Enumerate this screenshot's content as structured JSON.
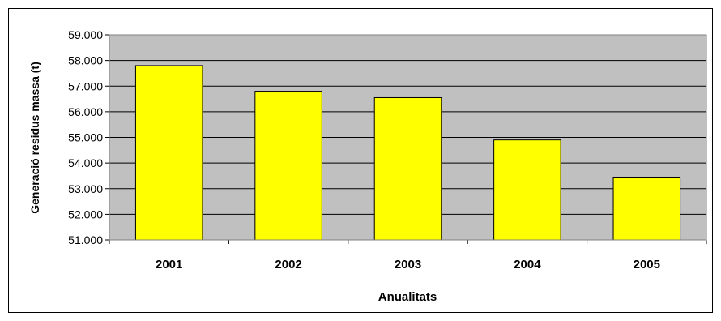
{
  "chart_data": {
    "type": "bar",
    "title": "",
    "xlabel": "Anualitats",
    "ylabel": "Generació residus massa (t)",
    "categories": [
      "2001",
      "2002",
      "2003",
      "2004",
      "2005"
    ],
    "values": [
      57800,
      56800,
      56550,
      54900,
      53450
    ],
    "ylim": [
      51000,
      59000
    ],
    "yticks": [
      51000,
      52000,
      53000,
      54000,
      55000,
      56000,
      57000,
      58000,
      59000
    ],
    "ytick_labels": [
      "51.000",
      "52.000",
      "53.000",
      "54.000",
      "55.000",
      "56.000",
      "57.000",
      "58.000",
      "59.000"
    ],
    "grid": true,
    "legend": "none",
    "colors": {
      "bar": "#ffff00",
      "bar_border": "#000000",
      "plot_background": "#c0c0c0",
      "gridline": "#000000"
    }
  }
}
